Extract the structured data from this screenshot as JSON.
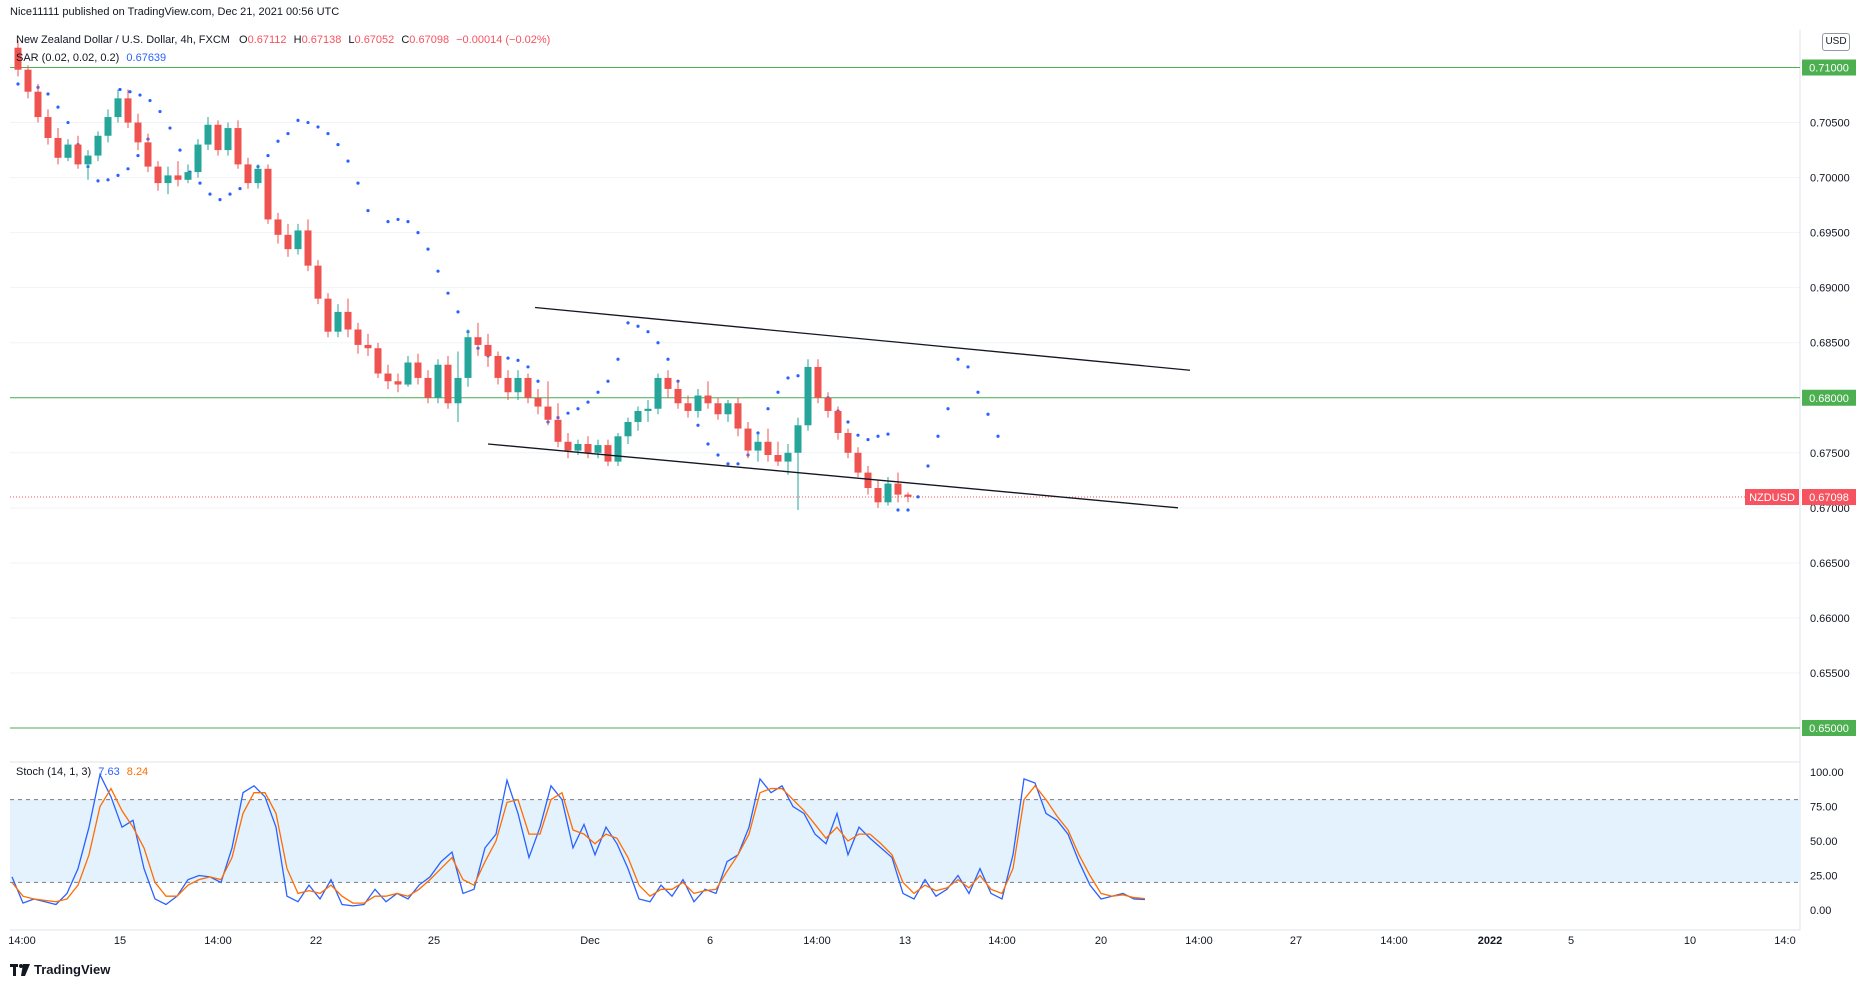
{
  "header": {
    "published": "Nice11111 published on TradingView.com, Dec 21, 2021 00:56 UTC",
    "symbol_line": "New Zealand Dollar / U.S. Dollar, 4h, FXCM",
    "ohlc": {
      "o_label": "O",
      "o": "0.67112",
      "h_label": "H",
      "h": "0.67138",
      "l_label": "L",
      "l": "0.67052",
      "c_label": "C",
      "c": "0.67098",
      "change": "−0.00014 (−0.02%)"
    },
    "sar_label": "SAR (0.02, 0.02, 0.2)",
    "sar_value": "0.67639"
  },
  "currency": "USD",
  "price_axis": {
    "ticks": [
      "0.71000",
      "0.70500",
      "0.70000",
      "0.69500",
      "0.69000",
      "0.68500",
      "0.68000",
      "0.67500",
      "0.67000",
      "0.66500",
      "0.66000",
      "0.65500",
      "0.65000"
    ],
    "levels": [
      {
        "value": "0.71000",
        "color": "#4caf50"
      },
      {
        "value": "0.68000",
        "color": "#4caf50"
      },
      {
        "value": "0.65000",
        "color": "#4caf50"
      }
    ],
    "last_symbol": "NZDUSD",
    "last_value": "0.67098",
    "last_color": "#f7525f"
  },
  "time_axis": {
    "labels": [
      "14:00",
      "15",
      "14:00",
      "22",
      "25",
      "Dec",
      "6",
      "14:00",
      "13",
      "14:00",
      "20",
      "14:00",
      "27",
      "14:00",
      "2022",
      "5",
      "10",
      "14:0"
    ]
  },
  "stoch": {
    "label": "Stoch (14, 1, 3)",
    "k": "7.63",
    "d": "8.24",
    "k_color": "#2962ff",
    "d_color": "#ff6d00",
    "ticks": [
      "100.00",
      "75.00",
      "50.00",
      "25.00",
      "0.00"
    ],
    "upper": 80,
    "lower": 20
  },
  "colors": {
    "up": "#26a69a",
    "down": "#ef5350",
    "sar": "#2962ff",
    "band": "#e3f2fd"
  },
  "branding": "TradingView",
  "chart_data": [
    {
      "type": "candlestick",
      "title": "New Zealand Dollar / U.S. Dollar, 4h, FXCM",
      "ylim": [
        0.648,
        0.7125
      ],
      "ohlc": [
        [
          0.7118,
          0.7125,
          0.7092,
          0.7098
        ],
        [
          0.7098,
          0.7102,
          0.7072,
          0.7078
        ],
        [
          0.7078,
          0.7085,
          0.705,
          0.7055
        ],
        [
          0.7055,
          0.7062,
          0.703,
          0.7036
        ],
        [
          0.7036,
          0.7045,
          0.7012,
          0.7018
        ],
        [
          0.7018,
          0.7035,
          0.7015,
          0.703
        ],
        [
          0.703,
          0.7038,
          0.7008,
          0.7012
        ],
        [
          0.7012,
          0.7025,
          0.6998,
          0.702
        ],
        [
          0.702,
          0.7042,
          0.7015,
          0.7038
        ],
        [
          0.7038,
          0.7062,
          0.7032,
          0.7055
        ],
        [
          0.7055,
          0.708,
          0.705,
          0.7072
        ],
        [
          0.7072,
          0.708,
          0.7045,
          0.705
        ],
        [
          0.705,
          0.7058,
          0.7025,
          0.7032
        ],
        [
          0.7032,
          0.704,
          0.7005,
          0.701
        ],
        [
          0.701,
          0.7015,
          0.6988,
          0.6995
        ],
        [
          0.6995,
          0.701,
          0.6985,
          0.7002
        ],
        [
          0.7002,
          0.7015,
          0.6992,
          0.6998
        ],
        [
          0.6998,
          0.7012,
          0.6995,
          0.7005
        ],
        [
          0.7005,
          0.7035,
          0.7,
          0.703
        ],
        [
          0.703,
          0.7055,
          0.7025,
          0.7048
        ],
        [
          0.7048,
          0.7052,
          0.702,
          0.7025
        ],
        [
          0.7025,
          0.705,
          0.702,
          0.7045
        ],
        [
          0.7045,
          0.7052,
          0.7008,
          0.7012
        ],
        [
          0.7012,
          0.7018,
          0.699,
          0.6995
        ],
        [
          0.6995,
          0.7012,
          0.699,
          0.7008
        ],
        [
          0.7008,
          0.7012,
          0.6958,
          0.6962
        ],
        [
          0.6962,
          0.6968,
          0.694,
          0.6948
        ],
        [
          0.6948,
          0.6958,
          0.6928,
          0.6935
        ],
        [
          0.6935,
          0.6958,
          0.693,
          0.6952
        ],
        [
          0.6952,
          0.6962,
          0.6915,
          0.692
        ],
        [
          0.692,
          0.6925,
          0.6885,
          0.689
        ],
        [
          0.689,
          0.6895,
          0.6855,
          0.686
        ],
        [
          0.686,
          0.6885,
          0.6855,
          0.6878
        ],
        [
          0.6878,
          0.689,
          0.6855,
          0.6862
        ],
        [
          0.6862,
          0.6868,
          0.684,
          0.6848
        ],
        [
          0.6848,
          0.6858,
          0.6838,
          0.6845
        ],
        [
          0.6845,
          0.685,
          0.6818,
          0.6822
        ],
        [
          0.6822,
          0.683,
          0.6808,
          0.6815
        ],
        [
          0.6815,
          0.6822,
          0.6805,
          0.6812
        ],
        [
          0.6812,
          0.6838,
          0.681,
          0.6832
        ],
        [
          0.6832,
          0.684,
          0.6812,
          0.6818
        ],
        [
          0.6818,
          0.6825,
          0.6795,
          0.68
        ],
        [
          0.68,
          0.6835,
          0.6795,
          0.683
        ],
        [
          0.683,
          0.6838,
          0.679,
          0.6795
        ],
        [
          0.6795,
          0.6842,
          0.6778,
          0.6818
        ],
        [
          0.6818,
          0.6862,
          0.681,
          0.6855
        ],
        [
          0.6855,
          0.6868,
          0.6838,
          0.6848
        ],
        [
          0.6848,
          0.6858,
          0.6828,
          0.6838
        ],
        [
          0.6838,
          0.6842,
          0.6812,
          0.6818
        ],
        [
          0.6818,
          0.6825,
          0.6798,
          0.6805
        ],
        [
          0.6805,
          0.6825,
          0.6798,
          0.6818
        ],
        [
          0.6818,
          0.6822,
          0.6795,
          0.68
        ],
        [
          0.68,
          0.6808,
          0.6785,
          0.6792
        ],
        [
          0.6792,
          0.6815,
          0.6775,
          0.678
        ],
        [
          0.678,
          0.6795,
          0.6755,
          0.676
        ],
        [
          0.676,
          0.6768,
          0.6745,
          0.6752
        ],
        [
          0.6752,
          0.6762,
          0.6748,
          0.6758
        ],
        [
          0.6758,
          0.6765,
          0.6745,
          0.675
        ],
        [
          0.675,
          0.6762,
          0.6745,
          0.6757
        ],
        [
          0.6757,
          0.6762,
          0.6738,
          0.6742
        ],
        [
          0.6742,
          0.6768,
          0.6738,
          0.6765
        ],
        [
          0.6765,
          0.6782,
          0.6758,
          0.6778
        ],
        [
          0.6778,
          0.6792,
          0.677,
          0.6788
        ],
        [
          0.6788,
          0.6798,
          0.6778,
          0.679
        ],
        [
          0.679,
          0.6822,
          0.6785,
          0.6818
        ],
        [
          0.6818,
          0.6825,
          0.68,
          0.6808
        ],
        [
          0.6808,
          0.6815,
          0.679,
          0.6795
        ],
        [
          0.6795,
          0.6802,
          0.6782,
          0.6788
        ],
        [
          0.6788,
          0.6808,
          0.6782,
          0.6802
        ],
        [
          0.6802,
          0.6815,
          0.679,
          0.6795
        ],
        [
          0.6795,
          0.68,
          0.678,
          0.6785
        ],
        [
          0.6785,
          0.6798,
          0.6778,
          0.6795
        ],
        [
          0.6795,
          0.68,
          0.6765,
          0.6772
        ],
        [
          0.6772,
          0.6778,
          0.6745,
          0.6752
        ],
        [
          0.6752,
          0.6768,
          0.6742,
          0.676
        ],
        [
          0.676,
          0.6772,
          0.6742,
          0.6748
        ],
        [
          0.6748,
          0.676,
          0.6738,
          0.6742
        ],
        [
          0.6742,
          0.6758,
          0.673,
          0.675
        ],
        [
          0.675,
          0.6782,
          0.6698,
          0.6775
        ],
        [
          0.6775,
          0.6835,
          0.677,
          0.6828
        ],
        [
          0.6828,
          0.6835,
          0.6795,
          0.68
        ],
        [
          0.68,
          0.6805,
          0.6782,
          0.6788
        ],
        [
          0.6788,
          0.6792,
          0.6762,
          0.6768
        ],
        [
          0.6768,
          0.6772,
          0.6745,
          0.675
        ],
        [
          0.675,
          0.6755,
          0.6728,
          0.6732
        ],
        [
          0.6732,
          0.6738,
          0.6712,
          0.6718
        ],
        [
          0.6718,
          0.6725,
          0.67,
          0.6705
        ],
        [
          0.6705,
          0.6728,
          0.6702,
          0.6722
        ],
        [
          0.6722,
          0.6732,
          0.6705,
          0.6712
        ],
        [
          0.6712,
          0.6714,
          0.6705,
          0.671
        ]
      ],
      "sar": [
        0.7085,
        0.7085,
        0.7082,
        0.7076,
        0.7064,
        0.705,
        0.703,
        0.701,
        0.6997,
        0.6998,
        0.7002,
        0.7008,
        0.702,
        0.7035,
        0.708,
        0.7078,
        0.7075,
        0.707,
        0.706,
        0.7045,
        0.7025,
        0.7005,
        0.6995,
        0.6985,
        0.698,
        0.6985,
        0.699,
        0.7,
        0.701,
        0.702,
        0.7033,
        0.704,
        0.7052,
        0.705,
        0.7046,
        0.704,
        0.703,
        0.7015,
        0.6995,
        0.697,
        0.696,
        0.6962,
        0.696,
        0.695,
        0.6935,
        0.6915,
        0.6895,
        0.6878,
        0.686,
        0.6845,
        0.6838,
        0.6836,
        0.6836,
        0.6834,
        0.6828,
        0.6815,
        0.6778,
        0.6782,
        0.6786,
        0.679,
        0.6796,
        0.6805,
        0.6815,
        0.6835,
        0.6868,
        0.6865,
        0.686,
        0.685,
        0.6835,
        0.6815,
        0.679,
        0.6775,
        0.6758,
        0.6748,
        0.674,
        0.674,
        0.6748,
        0.6768,
        0.679,
        0.6805,
        0.6818,
        0.682,
        0.682,
        0.6812,
        0.68,
        0.6788,
        0.6778,
        0.6766,
        0.6762,
        0.6765,
        0.6767,
        0.6698,
        0.6698,
        0.671,
        0.6738,
        0.6765,
        0.679,
        0.6835,
        0.6828,
        0.6805,
        0.6785,
        0.6765
      ],
      "sar_x": [
        18,
        28,
        38,
        48,
        58,
        68,
        78,
        88,
        98,
        108,
        118,
        128,
        138,
        148,
        120,
        130,
        140,
        150,
        160,
        170,
        180,
        190,
        200,
        210,
        220,
        230,
        240,
        250,
        258,
        268,
        278,
        288,
        298,
        308,
        318,
        328,
        338,
        348,
        358,
        368,
        388,
        398,
        408,
        418,
        428,
        438,
        448,
        458,
        468,
        478,
        488,
        498,
        508,
        518,
        528,
        538,
        548,
        558,
        568,
        578,
        588,
        598,
        608,
        618,
        628,
        638,
        648,
        658,
        668,
        678,
        688,
        698,
        708,
        718,
        728,
        738,
        748,
        758,
        768,
        778,
        788,
        798,
        808,
        818,
        828,
        838,
        848,
        858,
        868,
        878,
        888,
        898,
        908,
        918,
        928,
        938,
        948,
        958,
        968,
        978,
        988,
        998
      ],
      "trendlines": [
        {
          "from": [
            0.6882,
            "Nov 29"
          ],
          "to": [
            0.6825,
            "Dec 21"
          ]
        },
        {
          "from": [
            0.6758,
            "Nov 28"
          ],
          "to": [
            0.67,
            "Dec 21"
          ]
        }
      ]
    },
    {
      "type": "line",
      "title": "Stoch (14, 1, 3)",
      "ylim": [
        0,
        100
      ],
      "series": [
        {
          "name": "%K",
          "values": [
            24,
            5,
            8,
            6,
            4,
            12,
            30,
            60,
            98,
            82,
            60,
            65,
            30,
            8,
            4,
            10,
            22,
            25,
            24,
            20,
            45,
            85,
            90,
            82,
            60,
            10,
            6,
            18,
            8,
            22,
            4,
            3,
            4,
            15,
            6,
            12,
            8,
            18,
            24,
            35,
            42,
            12,
            15,
            45,
            55,
            94,
            70,
            38,
            60,
            90,
            80,
            45,
            62,
            40,
            60,
            48,
            30,
            8,
            6,
            18,
            10,
            22,
            6,
            15,
            12,
            35,
            40,
            60,
            95,
            85,
            90,
            75,
            70,
            55,
            48,
            70,
            40,
            60,
            52,
            45,
            38,
            12,
            8,
            22,
            10,
            15,
            25,
            12,
            30,
            12,
            8,
            40,
            95,
            92,
            70,
            65,
            55,
            35,
            18,
            8,
            10,
            12,
            8,
            7.63
          ]
        },
        {
          "name": "%D",
          "values": [
            20,
            10,
            8,
            7,
            6,
            8,
            18,
            40,
            75,
            88,
            72,
            60,
            45,
            20,
            10,
            10,
            18,
            22,
            24,
            22,
            38,
            70,
            85,
            85,
            70,
            30,
            12,
            14,
            12,
            18,
            10,
            5,
            5,
            10,
            10,
            12,
            10,
            15,
            22,
            30,
            38,
            22,
            18,
            35,
            50,
            78,
            80,
            55,
            55,
            80,
            85,
            58,
            55,
            48,
            55,
            52,
            38,
            18,
            10,
            15,
            15,
            20,
            12,
            14,
            15,
            28,
            40,
            55,
            85,
            88,
            88,
            80,
            72,
            62,
            52,
            60,
            50,
            55,
            55,
            48,
            40,
            20,
            12,
            18,
            14,
            16,
            22,
            16,
            25,
            15,
            12,
            30,
            80,
            90,
            80,
            68,
            58,
            40,
            25,
            12,
            10,
            11,
            9,
            8.24
          ]
        }
      ]
    }
  ]
}
